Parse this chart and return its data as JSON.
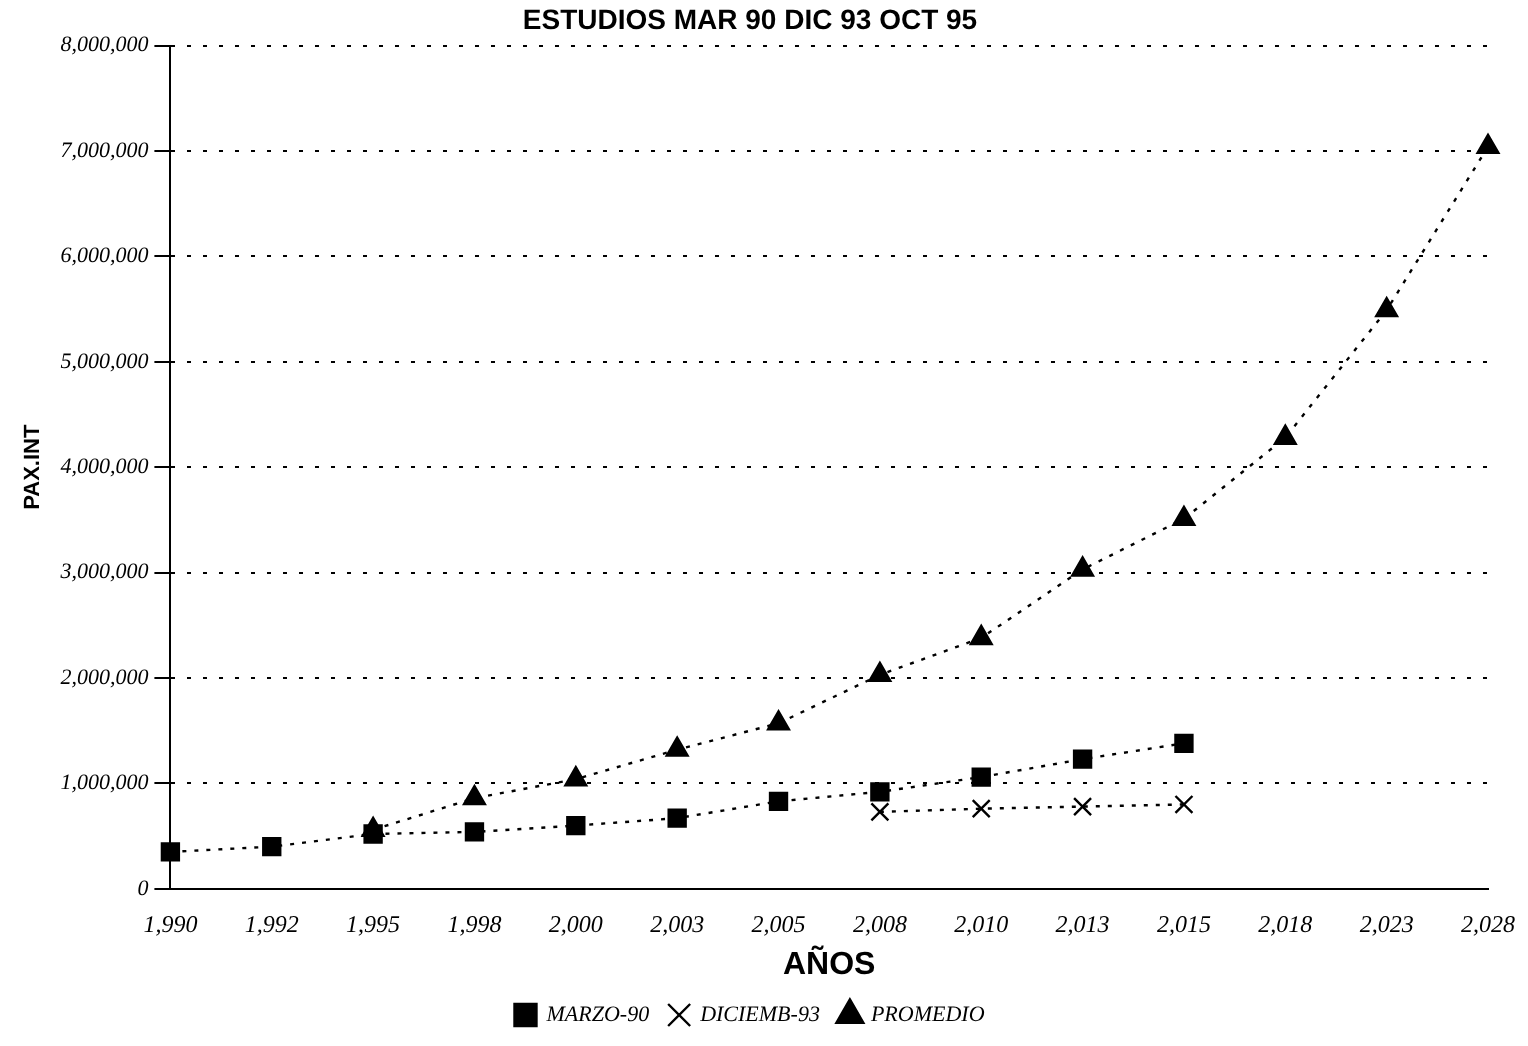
{
  "chart_data": {
    "type": "line",
    "title": "ESTUDIOS MAR 90 DIC 93 OCT 95",
    "xlabel": "AÑOS",
    "ylabel": "PAX.INT",
    "categories": [
      "1,990",
      "1,992",
      "1,995",
      "1,998",
      "2,000",
      "2,003",
      "2,005",
      "2,008",
      "2,010",
      "2,013",
      "2,015",
      "2,018",
      "2,023",
      "2,028"
    ],
    "series": [
      {
        "name": "MARZO-90",
        "color": "#000000",
        "marker": "square",
        "values": [
          350000,
          400000,
          520000,
          540000,
          600000,
          670000,
          830000,
          920000,
          1060000,
          1230000,
          1380000,
          null,
          null,
          null
        ]
      },
      {
        "name": "DICIEMB-93",
        "color": "#000000",
        "marker": "cross",
        "values": [
          null,
          null,
          null,
          null,
          null,
          null,
          null,
          730000,
          760000,
          780000,
          800000,
          null,
          null,
          null
        ]
      },
      {
        "name": "PROMEDIO",
        "color": "#000000",
        "marker": "triangle",
        "values": [
          null,
          null,
          560000,
          860000,
          1040000,
          1320000,
          1570000,
          2030000,
          2380000,
          3030000,
          3510000,
          4280000,
          5490000,
          7040000
        ]
      }
    ],
    "ylim": [
      0,
      8000000
    ],
    "yticks": [
      0,
      {
        "value": 1000000,
        "label": "1,000,000"
      },
      {
        "value": 2000000,
        "label": "2,000,000"
      },
      {
        "value": 3000000,
        "label": "3,000,000"
      },
      {
        "value": 4000000,
        "label": "4,000,000"
      },
      {
        "value": 5000000,
        "label": "5,000,000"
      },
      {
        "value": 6000000,
        "label": "6,000,000"
      },
      {
        "value": 7000000,
        "label": "7,000,000"
      },
      {
        "value": 8000000,
        "label": "8,000,000"
      }
    ],
    "grid": "y",
    "legend": "bottom",
    "line_style": "dotted"
  }
}
